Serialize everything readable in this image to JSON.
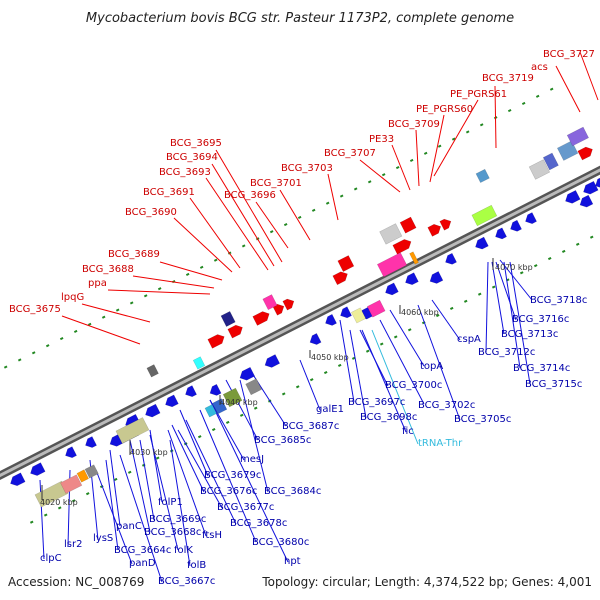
{
  "header": {
    "title": "Mycobacterium bovis BCG str. Pasteur 1173P2, complete genome"
  },
  "footer": {
    "accession": "Accession: NC_008769",
    "topology": "Topology: circular; Length: 4,374,522 bp; Genes: 4,001"
  },
  "colors": {
    "plus_strand": "#ee0000",
    "minus_strand": "#1111dd",
    "backbone": "#888888",
    "gc_dots": "#228822",
    "trna": "#33bbdd"
  },
  "ticks": [
    {
      "label": "4020 kbp"
    },
    {
      "label": "4030 kbp"
    },
    {
      "label": "4040 kbp"
    },
    {
      "label": "4050 kbp"
    },
    {
      "label": "4060 kbp"
    },
    {
      "label": "4070 kbp"
    }
  ],
  "labels_top": [
    {
      "text": "BCG_3727"
    },
    {
      "text": "acs"
    },
    {
      "text": "BCG_3719"
    },
    {
      "text": "PE_PGRS61"
    },
    {
      "text": "PE_PGRS60"
    },
    {
      "text": "BCG_3709"
    },
    {
      "text": "PE33"
    },
    {
      "text": "BCG_3707"
    },
    {
      "text": "BCG_3703"
    },
    {
      "text": "BCG_3695"
    },
    {
      "text": "BCG_3694"
    },
    {
      "text": "BCG_3693"
    },
    {
      "text": "BCG_3701"
    },
    {
      "text": "BCG_3696"
    },
    {
      "text": "BCG_3691"
    },
    {
      "text": "BCG_3690"
    },
    {
      "text": "BCG_3689"
    },
    {
      "text": "BCG_3688"
    },
    {
      "text": "ppa"
    },
    {
      "text": "lpqG"
    },
    {
      "text": "BCG_3675"
    }
  ],
  "labels_bottom": [
    {
      "text": "BCG_3718c"
    },
    {
      "text": "BCG_3716c"
    },
    {
      "text": "BCG_3713c"
    },
    {
      "text": "cspA"
    },
    {
      "text": "BCG_3712c"
    },
    {
      "text": "BCG_3714c"
    },
    {
      "text": "BCG_3715c"
    },
    {
      "text": "topA"
    },
    {
      "text": "BCG_3700c"
    },
    {
      "text": "BCG_3697c"
    },
    {
      "text": "BCG_3702c"
    },
    {
      "text": "BCG_3698c"
    },
    {
      "text": "BCG_3705c"
    },
    {
      "text": "galE1"
    },
    {
      "text": "fic"
    },
    {
      "text": "tRNA-Thr"
    },
    {
      "text": "BCG_3687c"
    },
    {
      "text": "BCG_3685c"
    },
    {
      "text": "mesJ"
    },
    {
      "text": "BCG_3679c"
    },
    {
      "text": "BCG_3676c"
    },
    {
      "text": "BCG_3684c"
    },
    {
      "text": "BCG_3677c"
    },
    {
      "text": "folP1"
    },
    {
      "text": "BCG_3678c"
    },
    {
      "text": "BCG_3669c"
    },
    {
      "text": "BCG_3668c"
    },
    {
      "text": "ftsH"
    },
    {
      "text": "panC"
    },
    {
      "text": "BCG_3680c"
    },
    {
      "text": "lysS"
    },
    {
      "text": "folK"
    },
    {
      "text": "lsr2"
    },
    {
      "text": "BCG_3664c"
    },
    {
      "text": "hpt"
    },
    {
      "text": "panD"
    },
    {
      "text": "folB"
    },
    {
      "text": "clpC"
    },
    {
      "text": "BCG_3667c"
    }
  ]
}
